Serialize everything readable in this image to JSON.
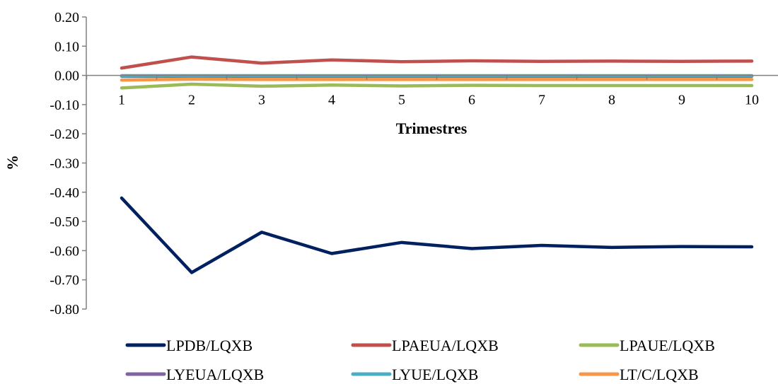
{
  "chart_data": {
    "type": "line",
    "title": "",
    "xlabel": "Trimestres",
    "ylabel": "%",
    "categories": [
      "1",
      "2",
      "3",
      "4",
      "5",
      "6",
      "7",
      "8",
      "9",
      "10"
    ],
    "ylim": [
      -0.8,
      0.2
    ],
    "y_ticks": [
      "0.20",
      "0.10",
      "0.00",
      "-0.10",
      "-0.20",
      "-0.30",
      "-0.40",
      "-0.50",
      "-0.60",
      "-0.70",
      "-0.80"
    ],
    "grid": false,
    "legend_position": "bottom",
    "series": [
      {
        "name": "LPDB/LQXB",
        "color": "#002060",
        "values": [
          -0.42,
          -0.675,
          -0.537,
          -0.61,
          -0.572,
          -0.593,
          -0.582,
          -0.589,
          -0.586,
          -0.587
        ]
      },
      {
        "name": "LPAEUA/LQXB",
        "color": "#C0504D",
        "values": [
          0.025,
          0.063,
          0.042,
          0.053,
          0.047,
          0.05,
          0.048,
          0.049,
          0.048,
          0.049
        ]
      },
      {
        "name": "LPAUE/LQXB",
        "color": "#9BBB59",
        "values": [
          -0.043,
          -0.03,
          -0.037,
          -0.033,
          -0.036,
          -0.034,
          -0.035,
          -0.035,
          -0.035,
          -0.035
        ]
      },
      {
        "name": "LYEUA/LQXB",
        "color": "#8064A2",
        "values": [
          -0.003,
          -0.003,
          -0.003,
          -0.003,
          -0.003,
          -0.003,
          -0.003,
          -0.003,
          -0.003,
          -0.003
        ]
      },
      {
        "name": "LYUE/LQXB",
        "color": "#4BACC6",
        "values": [
          -0.001,
          -0.001,
          -0.001,
          -0.001,
          -0.001,
          -0.001,
          -0.001,
          -0.001,
          -0.001,
          -0.001
        ]
      },
      {
        "name": "LT/C/LQXB",
        "color": "#F79646",
        "values": [
          -0.016,
          -0.013,
          -0.014,
          -0.014,
          -0.014,
          -0.014,
          -0.014,
          -0.014,
          -0.014,
          -0.014
        ]
      }
    ]
  }
}
